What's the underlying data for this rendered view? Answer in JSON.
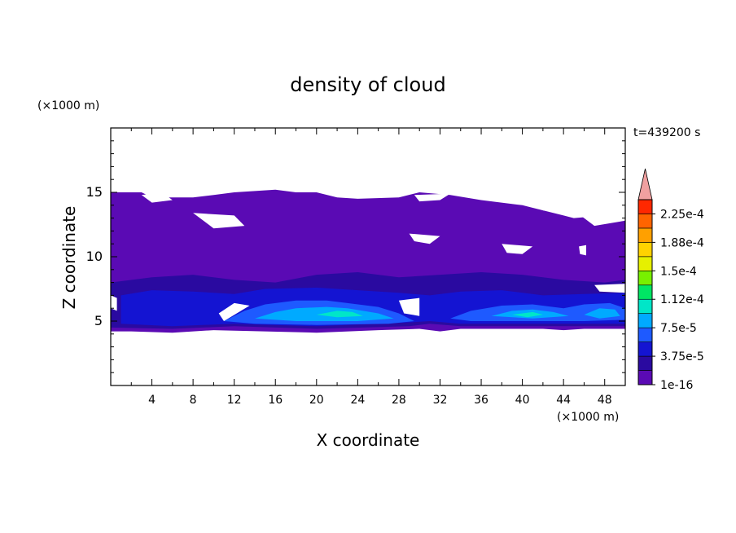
{
  "chart_data": {
    "type": "heatmap",
    "title": "density of cloud",
    "time_label": "t=439200 s",
    "xlabel": "X coordinate",
    "ylabel": "Z coordinate",
    "x_unit": "(×1000 m)",
    "y_unit": "(×1000 m)",
    "xlim": [
      0,
      50
    ],
    "ylim": [
      0,
      20
    ],
    "x_ticks": [
      4,
      8,
      12,
      16,
      20,
      24,
      28,
      32,
      36,
      40,
      44,
      48
    ],
    "y_ticks": [
      5,
      10,
      15
    ],
    "colorbar": {
      "levels": [
        "1e-16",
        "3.75e-5",
        "7.5e-5",
        "1.12e-4",
        "1.5e-4",
        "1.88e-4",
        "2.25e-4"
      ],
      "colors": [
        "#5a0ab4",
        "#2a0aa0",
        "#1414d2",
        "#1e5aff",
        "#00aaff",
        "#00e6c8",
        "#00e664",
        "#78f000",
        "#e6f000",
        "#ffd200",
        "#ffa000",
        "#ff6400",
        "#ff2800",
        "#f0a0a0"
      ],
      "extend": "max"
    },
    "regions": [
      {
        "level": 0,
        "polygon": [
          [
            0,
            15
          ],
          [
            3,
            15
          ],
          [
            4,
            14.6
          ],
          [
            8,
            14.6
          ],
          [
            10,
            14.8
          ],
          [
            12,
            15
          ],
          [
            14,
            15.1
          ],
          [
            16,
            15.2
          ],
          [
            18,
            15
          ],
          [
            20,
            15
          ],
          [
            22,
            14.6
          ],
          [
            24,
            14.5
          ],
          [
            28,
            14.6
          ],
          [
            30,
            15
          ],
          [
            33,
            14.8
          ],
          [
            36,
            14.4
          ],
          [
            40,
            14
          ],
          [
            44,
            13.2
          ],
          [
            45,
            13
          ],
          [
            48,
            13.2
          ],
          [
            50,
            13.8
          ],
          [
            50,
            4.4
          ],
          [
            46,
            4.4
          ],
          [
            44,
            4.3
          ],
          [
            42,
            4.4
          ],
          [
            34,
            4.4
          ],
          [
            32,
            4.2
          ],
          [
            30,
            4.4
          ],
          [
            26,
            4.3
          ],
          [
            20,
            4.1
          ],
          [
            10,
            4.3
          ],
          [
            6,
            4.1
          ],
          [
            2,
            4.2
          ],
          [
            0,
            4.2
          ]
        ]
      },
      {
        "level": 1,
        "polygon": [
          [
            0,
            8
          ],
          [
            4,
            8.4
          ],
          [
            8,
            8.6
          ],
          [
            12,
            8.2
          ],
          [
            16,
            8
          ],
          [
            20,
            8.6
          ],
          [
            24,
            8.8
          ],
          [
            28,
            8.4
          ],
          [
            32,
            8.6
          ],
          [
            36,
            8.8
          ],
          [
            40,
            8.6
          ],
          [
            44,
            8.2
          ],
          [
            48,
            8
          ],
          [
            50,
            8.2
          ],
          [
            50,
            4.6
          ],
          [
            40,
            4.6
          ],
          [
            34,
            4.6
          ],
          [
            31,
            4.8
          ],
          [
            29,
            4.6
          ],
          [
            20,
            4.4
          ],
          [
            12,
            4.6
          ],
          [
            6,
            4.4
          ],
          [
            0,
            4.5
          ]
        ]
      },
      {
        "level": 2,
        "polygon": [
          [
            1,
            7
          ],
          [
            4,
            7.4
          ],
          [
            8,
            7.3
          ],
          [
            12,
            7.1
          ],
          [
            15,
            7.5
          ],
          [
            20,
            7.6
          ],
          [
            24,
            7.4
          ],
          [
            28,
            7.2
          ],
          [
            31,
            7
          ],
          [
            34,
            7.3
          ],
          [
            38,
            7.4
          ],
          [
            42,
            7
          ],
          [
            46,
            7.1
          ],
          [
            50,
            7.2
          ],
          [
            50,
            4.8
          ],
          [
            44,
            4.8
          ],
          [
            40,
            4.8
          ],
          [
            34,
            4.8
          ],
          [
            31,
            5
          ],
          [
            29,
            4.9
          ],
          [
            20,
            4.6
          ],
          [
            12,
            4.8
          ],
          [
            6,
            4.6
          ],
          [
            1,
            4.8
          ]
        ]
      },
      {
        "level": 3,
        "polygon": [
          [
            11,
            5
          ],
          [
            13,
            5.8
          ],
          [
            15,
            6.3
          ],
          [
            18,
            6.6
          ],
          [
            21,
            6.6
          ],
          [
            23,
            6.4
          ],
          [
            26,
            6.1
          ],
          [
            28,
            5.6
          ],
          [
            29.5,
            5
          ],
          [
            27,
            4.8
          ],
          [
            20,
            4.7
          ],
          [
            14,
            4.8
          ]
        ]
      },
      {
        "level": 3,
        "polygon": [
          [
            33,
            5.2
          ],
          [
            35,
            5.8
          ],
          [
            38,
            6.2
          ],
          [
            41,
            6.3
          ],
          [
            44,
            6
          ],
          [
            46,
            6.3
          ],
          [
            48.5,
            6.4
          ],
          [
            50,
            6
          ],
          [
            50,
            5.1
          ],
          [
            46,
            5
          ],
          [
            40,
            5
          ],
          [
            35,
            5
          ]
        ]
      },
      {
        "level": 4,
        "polygon": [
          [
            14,
            5.2
          ],
          [
            16,
            5.7
          ],
          [
            18,
            6
          ],
          [
            21,
            6.1
          ],
          [
            23,
            6
          ],
          [
            26,
            5.6
          ],
          [
            27.5,
            5.2
          ],
          [
            24,
            5
          ],
          [
            18,
            5
          ]
        ]
      },
      {
        "level": 4,
        "polygon": [
          [
            37,
            5.4
          ],
          [
            39,
            5.8
          ],
          [
            41,
            5.9
          ],
          [
            43,
            5.7
          ],
          [
            44.5,
            5.4
          ],
          [
            41,
            5.2
          ]
        ]
      },
      {
        "level": 4,
        "polygon": [
          [
            46,
            5.5
          ],
          [
            47.5,
            6
          ],
          [
            49,
            5.9
          ],
          [
            49.5,
            5.4
          ],
          [
            47.5,
            5.2
          ]
        ]
      },
      {
        "level": 5,
        "polygon": [
          [
            20,
            5.5
          ],
          [
            22,
            5.8
          ],
          [
            23.5,
            5.7
          ],
          [
            24.5,
            5.4
          ],
          [
            22,
            5.3
          ]
        ]
      },
      {
        "level": 5,
        "polygon": [
          [
            39,
            5.5
          ],
          [
            41,
            5.7
          ],
          [
            42,
            5.5
          ],
          [
            40.5,
            5.3
          ]
        ]
      }
    ],
    "holes": [
      {
        "polygon": [
          [
            3,
            14.8
          ],
          [
            5,
            15
          ],
          [
            6,
            14.4
          ],
          [
            4,
            14.2
          ]
        ]
      },
      {
        "polygon": [
          [
            29.5,
            14.8
          ],
          [
            33,
            14.9
          ],
          [
            32,
            14.4
          ],
          [
            30,
            14.3
          ]
        ]
      },
      {
        "polygon": [
          [
            40,
            14.2
          ],
          [
            45,
            14.3
          ],
          [
            44,
            13.4
          ],
          [
            42,
            13.6
          ]
        ]
      },
      {
        "polygon": [
          [
            45,
            13.6
          ],
          [
            50,
            14.2
          ],
          [
            50,
            12.8
          ],
          [
            47,
            12.4
          ]
        ]
      },
      {
        "polygon": [
          [
            8,
            13.4
          ],
          [
            12,
            13.2
          ],
          [
            13,
            12.4
          ],
          [
            10,
            12.2
          ]
        ]
      },
      {
        "polygon": [
          [
            29,
            11.8
          ],
          [
            32,
            11.6
          ],
          [
            31,
            11
          ],
          [
            29.5,
            11.2
          ]
        ]
      },
      {
        "polygon": [
          [
            38,
            11
          ],
          [
            41,
            10.8
          ],
          [
            40,
            10.2
          ],
          [
            38.5,
            10.3
          ]
        ]
      },
      {
        "polygon": [
          [
            45.5,
            10.8
          ],
          [
            46.2,
            10.9
          ],
          [
            46.2,
            10.1
          ],
          [
            45.6,
            10.2
          ]
        ]
      },
      {
        "polygon": [
          [
            47,
            7.8
          ],
          [
            50,
            7.9
          ],
          [
            50,
            7.2
          ],
          [
            47.5,
            7.3
          ]
        ]
      },
      {
        "polygon": [
          [
            11,
            5
          ],
          [
            13.5,
            6.2
          ],
          [
            12,
            6.4
          ],
          [
            10.5,
            5.6
          ]
        ]
      },
      {
        "polygon": [
          [
            28,
            6.6
          ],
          [
            30,
            6.8
          ],
          [
            30,
            5.4
          ],
          [
            28.5,
            5.6
          ]
        ]
      },
      {
        "polygon": [
          [
            0,
            7
          ],
          [
            0.6,
            6.8
          ],
          [
            0.6,
            5.8
          ],
          [
            0,
            6
          ]
        ]
      }
    ]
  }
}
